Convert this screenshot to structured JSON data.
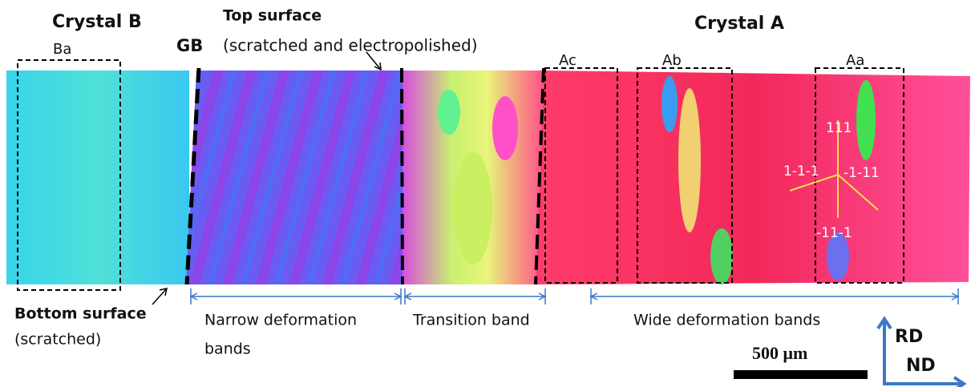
{
  "labels": {
    "crystal_b": "Crystal B",
    "ba": "Ba",
    "gb": "GB",
    "top_surface": "Top surface",
    "top_surface_note": "(scratched and electropolished)",
    "crystal_a": "Crystal A",
    "ac": "Ac",
    "ab": "Ab",
    "aa": "Aa",
    "dir_111": "111",
    "dir_1m1m1": "1-1-1",
    "dir_m111": "-1-11",
    "dir_m11m1": "-11-1",
    "bottom_surface": "Bottom surface",
    "bottom_surface_note": "(scratched)",
    "narrow_1": "Narrow deformation",
    "narrow_2": "bands",
    "transition": "Transition band",
    "wide": "Wide deformation bands",
    "scale": "500 μm",
    "rd": "RD",
    "nd": "ND"
  }
}
